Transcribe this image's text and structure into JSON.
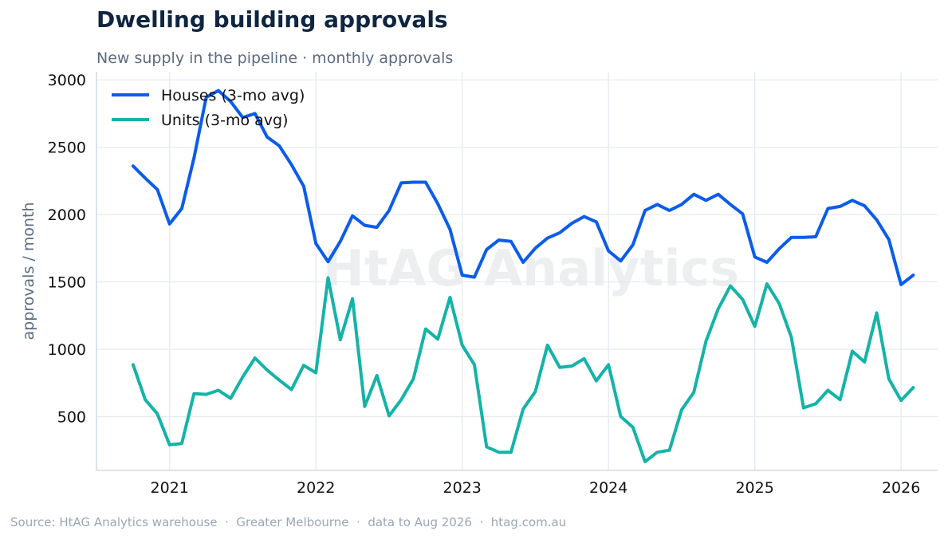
{
  "header": {
    "title": "Dwelling building approvals",
    "subtitle": "New supply in the pipeline · monthly approvals"
  },
  "watermark": "HtAG Analytics",
  "footer": {
    "source": "Source: HtAG Analytics warehouse  ·  Greater Melbourne  ·  data to Aug 2026  ·  htag.com.au"
  },
  "chart_data": {
    "type": "line",
    "title": "Dwelling building approvals",
    "subtitle": "New supply in the pipeline · monthly approvals",
    "xlabel": "",
    "ylabel": "approvals / month",
    "x_start": "2020-10",
    "x_ticks": [
      "2021",
      "2022",
      "2023",
      "2024",
      "2025",
      "2026"
    ],
    "y_ticks": [
      500,
      1000,
      1500,
      2000,
      2500,
      3000
    ],
    "xlim": [
      "2020-07",
      "2026-04"
    ],
    "ylim": [
      100,
      3060
    ],
    "grid": true,
    "legend_position": "top-left",
    "series": [
      {
        "name": "Houses (3-mo avg)",
        "color": "#0b5ceb",
        "values": [
          2360,
          2270,
          2185,
          1930,
          2045,
          2420,
          2870,
          2920,
          2840,
          2720,
          2750,
          2575,
          2510,
          2370,
          2210,
          1785,
          1650,
          1800,
          1990,
          1920,
          1905,
          2030,
          2235,
          2240,
          2240,
          2080,
          1890,
          1550,
          1535,
          1740,
          1810,
          1800,
          1645,
          1750,
          1825,
          1865,
          1935,
          1985,
          1945,
          1730,
          1655,
          1775,
          2030,
          2075,
          2030,
          2075,
          2150,
          2105,
          2150,
          2075,
          2005,
          1685,
          1645,
          1745,
          1830,
          1830,
          1835,
          2045,
          2060,
          2105,
          2065,
          1960,
          1815,
          1480,
          1550
        ]
      },
      {
        "name": "Units (3-mo avg)",
        "color": "#14b3a8",
        "values": [
          885,
          625,
          520,
          290,
          300,
          670,
          665,
          695,
          635,
          795,
          935,
          845,
          770,
          700,
          880,
          825,
          1530,
          1070,
          1375,
          575,
          805,
          505,
          625,
          780,
          1150,
          1075,
          1385,
          1030,
          885,
          275,
          235,
          235,
          555,
          685,
          1030,
          865,
          875,
          930,
          765,
          885,
          500,
          420,
          165,
          235,
          250,
          550,
          680,
          1060,
          1300,
          1470,
          1370,
          1170,
          1485,
          1340,
          1090,
          565,
          595,
          695,
          625,
          985,
          905,
          1270,
          780,
          620,
          715
        ]
      }
    ]
  }
}
